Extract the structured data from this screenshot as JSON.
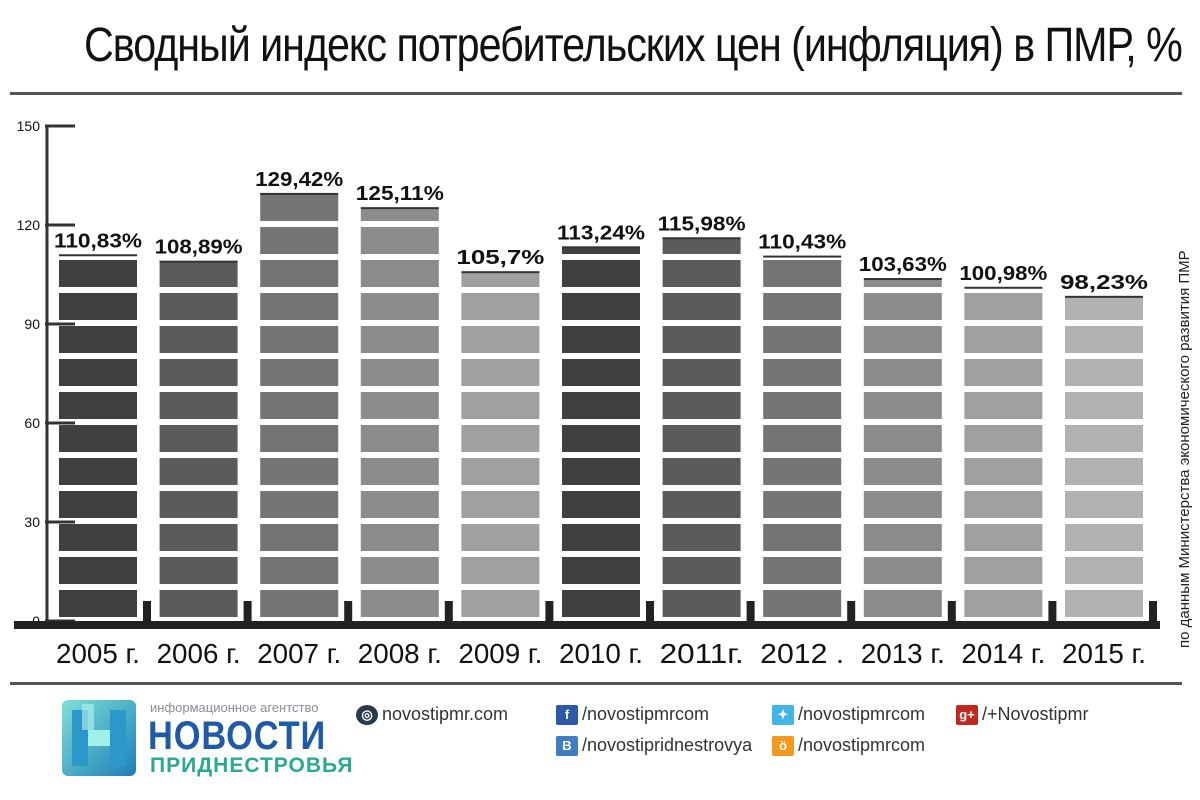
{
  "title": "Сводный индекс потребительских цен (инфляция) в ПМР, %",
  "source_note": "по данным Министерства экономического развития ПМР",
  "brand": {
    "agency": "информационное агентство",
    "name": "НОВОСТИ",
    "region": "ПРИДНЕСТРОВЬЯ"
  },
  "social": {
    "website": "novostipmr.com",
    "facebook": "/novostipmrcom",
    "vk": "/novostipridnestrovya",
    "twitter": "/novostipmrcom",
    "odnoklassniki": "/novostipmrcom",
    "googleplus": "/+Novostipmr"
  },
  "icons": {
    "website": "globe-icon",
    "facebook": "facebook-icon",
    "vk": "vk-icon",
    "twitter": "twitter-icon",
    "odnoklassniki": "odnoklassniki-icon",
    "googleplus": "googleplus-icon",
    "logo": "novosti-logo-icon"
  },
  "colors": {
    "facebook": "#2d5aa6",
    "vk": "#3d7fc1",
    "twitter": "#3fb5e8",
    "odnoklassniki": "#f39a1e",
    "googleplus": "#c3281f"
  },
  "chart_data": {
    "type": "bar",
    "title": "Сводный индекс потребительских цен (инфляция) в ПМР, %",
    "categories": [
      "2005 г.",
      "2006 г.",
      "2007 г.",
      "2008 г.",
      "2009 г.",
      "2010 г.",
      "2011г.",
      "2012 .",
      "2013 г.",
      "2014 г.",
      "2015 г."
    ],
    "values": [
      110.83,
      108.89,
      129.42,
      125.11,
      105.7,
      113.24,
      115.98,
      110.43,
      103.63,
      100.98,
      98.23
    ],
    "value_labels": [
      "110,83%",
      "108,89%",
      "129,42%",
      "125,11%",
      "105,7%",
      "113,24%",
      "115,98%",
      "110,43%",
      "103,63%",
      "100,98%",
      "98,23%"
    ],
    "bar_colors": [
      "#404040",
      "#5b5b5b",
      "#747474",
      "#8c8c8c",
      "#a0a0a0",
      "#404040",
      "#5b5b5b",
      "#747474",
      "#8c8c8c",
      "#a0a0a0",
      "#b2b2b2"
    ],
    "yticks": [
      0,
      30,
      60,
      90,
      120,
      150
    ],
    "ylim": [
      0,
      150
    ],
    "xlabel": "",
    "ylabel": "",
    "grid": false,
    "legend": "none"
  }
}
